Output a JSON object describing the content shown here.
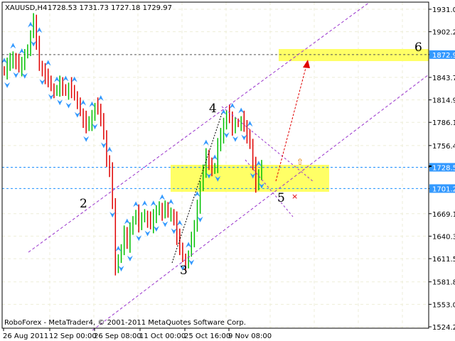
{
  "header": {
    "symbol": "XAUUSD,H4",
    "ohlc": "1728.53 1731.73 1727.18 1729.97"
  },
  "footer": {
    "copyright": "RoboForex - MetaTrader4, © 2001-2011 MetaQuotes Software Corp."
  },
  "colors": {
    "bull": "#00c000",
    "bear": "#e00000",
    "fractal": "#3399ff",
    "zone": "#ffff66",
    "channel": "#9933cc",
    "level": "#1e90ff",
    "arrow": "#e00000"
  },
  "chart_data": {
    "type": "candlestick",
    "ylim": [
      1524.2,
      1931.0
    ],
    "y_ticks": [
      "1931.00",
      "1902.20",
      "1872.90",
      "1843.70",
      "1814.90",
      "1786.10",
      "1756.40",
      "1728.53",
      "1701.28",
      "1669.10",
      "1640.30",
      "1611.50",
      "1581.80",
      "1553.00",
      "1524.20"
    ],
    "x_ticks": [
      "26 Aug 2011",
      "12 Sep 00:00",
      "26 Sep 08:00",
      "11 Oct 00:00",
      "25 Oct 16:00",
      "9 Nov 08:00"
    ],
    "closes": [
      1850,
      1858,
      1866,
      1870,
      1862,
      1855,
      1860,
      1872,
      1880,
      1900,
      1915,
      1890,
      1860,
      1850,
      1845,
      1838,
      1830,
      1826,
      1830,
      1835,
      1828,
      1825,
      1832,
      1824,
      1818,
      1812,
      1800,
      1790,
      1780,
      1785,
      1795,
      1806,
      1800,
      1790,
      1770,
      1740,
      1724,
      1680,
      1600,
      1610,
      1625,
      1642,
      1630,
      1650,
      1660,
      1670,
      1655,
      1662,
      1668,
      1660,
      1655,
      1665,
      1672,
      1679,
      1670,
      1675,
      1668,
      1670,
      1660,
      1640,
      1624,
      1612,
      1606,
      1618,
      1635,
      1652,
      1680,
      1706,
      1720,
      1743,
      1735,
      1724,
      1730,
      1755,
      1770,
      1785,
      1797,
      1790,
      1779,
      1785,
      1784,
      1790,
      1780,
      1770,
      1760,
      1730,
      1706,
      1716,
      1729.97
    ],
    "levels": [
      {
        "price": 1872.9,
        "label": "1872.90"
      },
      {
        "price": 1728.53,
        "label": "1728.53"
      },
      {
        "price": 1701.28,
        "label": "1701.28"
      }
    ],
    "wave_labels": [
      "2",
      "3",
      "4",
      "5",
      "6"
    ]
  }
}
